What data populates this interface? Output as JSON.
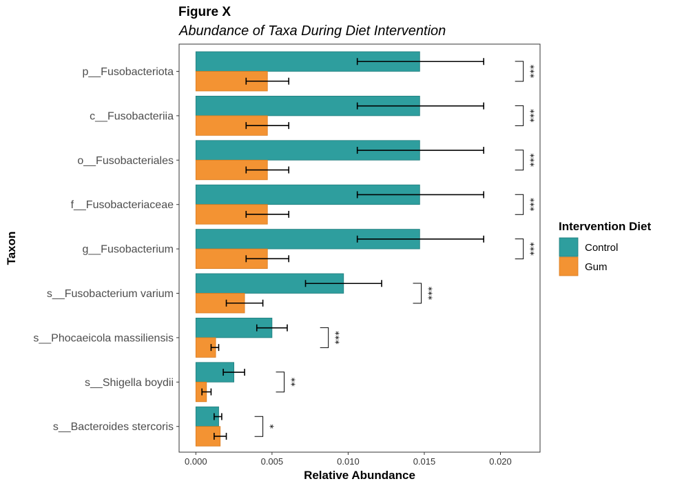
{
  "chart_data": {
    "type": "bar",
    "orientation": "horizontal",
    "title": "Figure X",
    "subtitle": "Abundance of Taxa During Diet Intervention",
    "xlabel": "Relative Abundance",
    "ylabel": "Taxon",
    "xlim": [
      -0.0011,
      0.0226
    ],
    "xticks": [
      "0.000",
      "0.005",
      "0.010",
      "0.015",
      "0.020"
    ],
    "xtick_values": [
      0,
      0.005,
      0.01,
      0.015,
      0.02
    ],
    "categories": [
      "p__Fusobacteriota",
      "c__Fusobacteriia",
      "o__Fusobacteriales",
      "f__Fusobacteriaceae",
      "g__Fusobacterium",
      "s__Fusobacterium varium",
      "s__Phocaeicola massiliensis",
      "s__Shigella boydii",
      "s__Bacteroides stercoris"
    ],
    "legend_title": "Intervention Diet",
    "legend_position": "right",
    "grid": false,
    "series": [
      {
        "name": "Control",
        "color": "#2e9e9e",
        "values": [
          0.0147,
          0.0147,
          0.0147,
          0.0147,
          0.0147,
          0.0097,
          0.005,
          0.0025,
          0.0015
        ],
        "error_low": [
          0.0106,
          0.0106,
          0.0106,
          0.0106,
          0.0106,
          0.0072,
          0.004,
          0.0018,
          0.0012
        ],
        "error_high": [
          0.0189,
          0.0189,
          0.0189,
          0.0189,
          0.0189,
          0.0122,
          0.006,
          0.0032,
          0.0017
        ]
      },
      {
        "name": "Gum",
        "color": "#f39333",
        "values": [
          0.0047,
          0.0047,
          0.0047,
          0.0047,
          0.0047,
          0.0032,
          0.0013,
          0.0007,
          0.0016
        ],
        "error_low": [
          0.0033,
          0.0033,
          0.0033,
          0.0033,
          0.0033,
          0.002,
          0.001,
          0.0004,
          0.0012
        ],
        "error_high": [
          0.0061,
          0.0061,
          0.0061,
          0.0061,
          0.0061,
          0.0044,
          0.0015,
          0.001,
          0.002
        ]
      }
    ],
    "significance": [
      {
        "bracket_x": 0.0215,
        "label": "***"
      },
      {
        "bracket_x": 0.0215,
        "label": "***"
      },
      {
        "bracket_x": 0.0215,
        "label": "***"
      },
      {
        "bracket_x": 0.0215,
        "label": "***"
      },
      {
        "bracket_x": 0.0215,
        "label": "***"
      },
      {
        "bracket_x": 0.0148,
        "label": "***"
      },
      {
        "bracket_x": 0.0087,
        "label": "***"
      },
      {
        "bracket_x": 0.0058,
        "label": "**"
      },
      {
        "bracket_x": 0.0044,
        "label": "*"
      }
    ]
  }
}
